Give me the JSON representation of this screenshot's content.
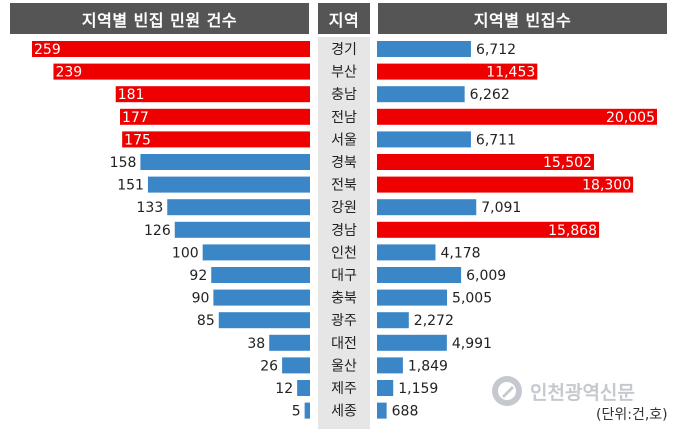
{
  "headers": {
    "left": "지역별 빈집 민원 건수",
    "middle": "지역",
    "right": "지역별 빈집수"
  },
  "unit_note": "(단위:건,호)",
  "watermark": {
    "text": "인천광역신문"
  },
  "colors": {
    "highlight": "#ee0000",
    "normal": "#3b86c6",
    "header_bg": "#555555",
    "region_bg": "#e6e6e6"
  },
  "chart_data": [
    {
      "type": "bar",
      "orientation": "horizontal",
      "direction": "leftward",
      "title": "지역별 빈집 민원 건수",
      "categories": [
        "경기",
        "부산",
        "충남",
        "전남",
        "서울",
        "경북",
        "전북",
        "강원",
        "경남",
        "인천",
        "대구",
        "충북",
        "광주",
        "대전",
        "울산",
        "제주",
        "세종"
      ],
      "values": [
        259,
        239,
        181,
        177,
        175,
        158,
        151,
        133,
        126,
        100,
        92,
        90,
        85,
        38,
        26,
        12,
        5
      ],
      "value_labels": [
        "259",
        "239",
        "181",
        "177",
        "175",
        "158",
        "151",
        "133",
        "126",
        "100",
        "92",
        "90",
        "85",
        "38",
        "26",
        "12",
        "5"
      ],
      "highlighted": [
        true,
        true,
        true,
        true,
        true,
        false,
        false,
        false,
        false,
        false,
        false,
        false,
        false,
        false,
        false,
        false,
        false
      ],
      "xlim": [
        0,
        259
      ]
    },
    {
      "type": "bar",
      "orientation": "horizontal",
      "direction": "rightward",
      "title": "지역별 빈집수",
      "categories": [
        "경기",
        "부산",
        "충남",
        "전남",
        "서울",
        "경북",
        "전북",
        "강원",
        "경남",
        "인천",
        "대구",
        "충북",
        "광주",
        "대전",
        "울산",
        "제주",
        "세종"
      ],
      "values": [
        6712,
        11453,
        6262,
        20005,
        6711,
        15502,
        18300,
        7091,
        15868,
        4178,
        6009,
        5005,
        2272,
        4991,
        1849,
        1159,
        688
      ],
      "value_labels": [
        "6,712",
        "11,453",
        "6,262",
        "20,005",
        "6,711",
        "15,502",
        "18,300",
        "7,091",
        "15,868",
        "4,178",
        "6,009",
        "5,005",
        "2,272",
        "4,991",
        "1,849",
        "1,159",
        "688"
      ],
      "highlighted": [
        false,
        true,
        false,
        true,
        false,
        true,
        true,
        false,
        true,
        false,
        false,
        false,
        false,
        false,
        false,
        false,
        false
      ],
      "xlim": [
        0,
        20005
      ]
    }
  ]
}
